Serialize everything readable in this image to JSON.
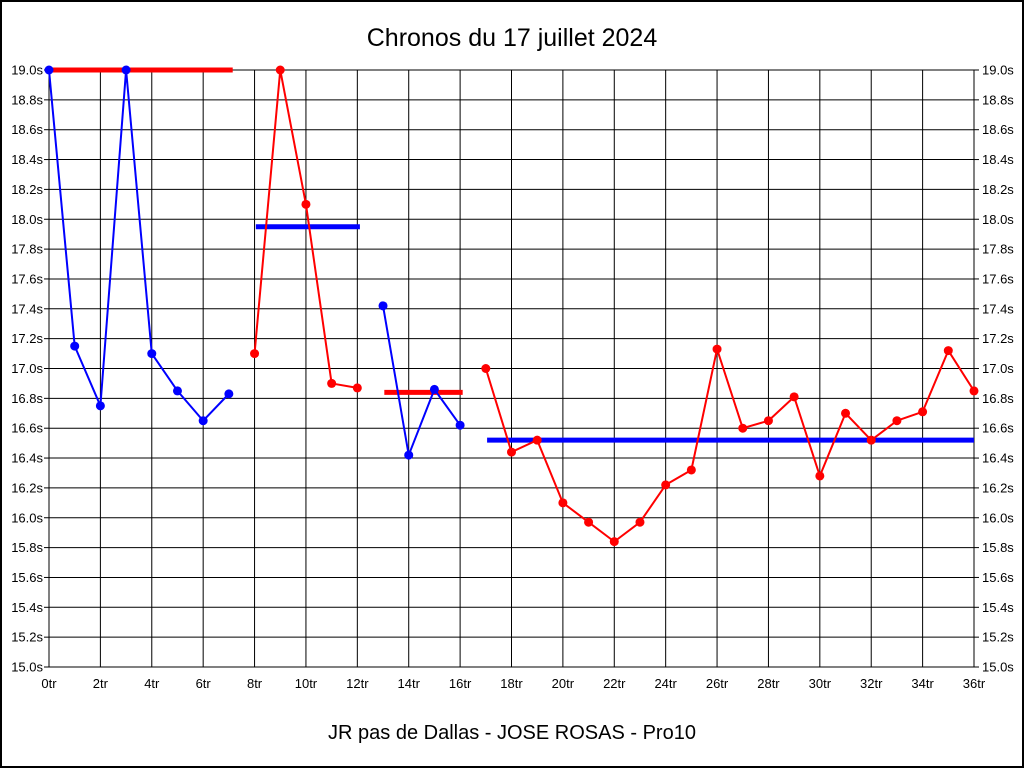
{
  "chart_data": {
    "type": "line",
    "title": "Chronos du 17 juillet 2024",
    "caption": "JR pas de Dallas - JOSE ROSAS - Pro10",
    "grid": {
      "show": true,
      "color": "#000000",
      "background": "#ffffff"
    },
    "x_axis": {
      "min": 0,
      "max": 36,
      "tick_step": 2,
      "unit": "tr",
      "tick_labels": [
        "0tr",
        "2tr",
        "4tr",
        "6tr",
        "8tr",
        "10tr",
        "12tr",
        "14tr",
        "16tr",
        "18tr",
        "20tr",
        "22tr",
        "24tr",
        "26tr",
        "28tr",
        "30tr",
        "32tr",
        "34tr",
        "36tr"
      ]
    },
    "y_axis": {
      "min": 15.0,
      "max": 19.0,
      "tick_step": 0.2,
      "unit": "s",
      "tick_labels": [
        "19.0s",
        "18.8s",
        "18.6s",
        "18.4s",
        "18.2s",
        "18.0s",
        "17.8s",
        "17.6s",
        "17.4s",
        "17.2s",
        "17.0s",
        "16.8s",
        "16.6s",
        "16.4s",
        "16.2s",
        "16.0s",
        "15.8s",
        "15.6s",
        "15.4s",
        "15.2s",
        "15.0s"
      ]
    },
    "colors": {
      "blue_series": "#0000ff",
      "red_series": "#ff0000"
    },
    "series": [
      {
        "name": "run-1-blue",
        "color": "#0000ff",
        "points": [
          [
            0,
            19.0
          ],
          [
            1,
            17.15
          ],
          [
            2,
            16.75
          ],
          [
            3,
            19.0
          ],
          [
            4,
            17.1
          ],
          [
            5,
            16.85
          ],
          [
            6,
            16.65
          ],
          [
            7,
            16.83
          ]
        ]
      },
      {
        "name": "run-2-red",
        "color": "#ff0000",
        "points": [
          [
            8,
            17.1
          ],
          [
            9,
            19.0
          ],
          [
            10,
            18.1
          ],
          [
            11,
            16.9
          ],
          [
            12,
            16.87
          ]
        ]
      },
      {
        "name": "run-3-blue",
        "color": "#0000ff",
        "points": [
          [
            13,
            17.42
          ],
          [
            14,
            16.42
          ],
          [
            15,
            16.86
          ],
          [
            16,
            16.62
          ]
        ]
      },
      {
        "name": "run-4-red",
        "color": "#ff0000",
        "points": [
          [
            17,
            17.0
          ],
          [
            18,
            16.44
          ],
          [
            19,
            16.52
          ],
          [
            20,
            16.1
          ],
          [
            21,
            15.97
          ],
          [
            22,
            15.84
          ],
          [
            23,
            15.97
          ],
          [
            24,
            16.22
          ],
          [
            25,
            16.32
          ],
          [
            26,
            17.13
          ],
          [
            27,
            16.6
          ],
          [
            28,
            16.65
          ],
          [
            29,
            16.81
          ],
          [
            30,
            16.28
          ],
          [
            31,
            16.7
          ],
          [
            32,
            16.52
          ],
          [
            33,
            16.65
          ],
          [
            34,
            16.71
          ],
          [
            35,
            17.12
          ],
          [
            36,
            16.85
          ]
        ]
      }
    ],
    "mean_lines": [
      {
        "name": "mean-line-run-1",
        "color": "#ff0000",
        "y": 19.0,
        "x_start": 0,
        "x_end": 7.15
      },
      {
        "name": "mean-line-run-2",
        "color": "#0000ff",
        "y": 17.95,
        "x_start": 8.05,
        "x_end": 12.1
      },
      {
        "name": "mean-line-run-3",
        "color": "#ff0000",
        "y": 16.84,
        "x_start": 13.05,
        "x_end": 16.1
      },
      {
        "name": "mean-line-run-4",
        "color": "#0000ff",
        "y": 16.52,
        "x_start": 17.05,
        "x_end": 36
      }
    ]
  }
}
